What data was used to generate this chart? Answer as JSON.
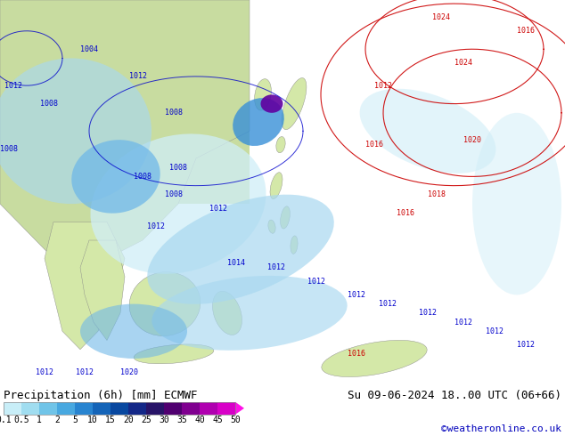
{
  "title_left": "Precipitation (6h) [mm] ECMWF",
  "title_right": "Su 09-06-2024 18..00 UTC (06+66)",
  "credit": "©weatheronline.co.uk",
  "colorbar_labels": [
    "0.1",
    "0.5",
    "1",
    "2",
    "5",
    "10",
    "15",
    "20",
    "25",
    "30",
    "35",
    "40",
    "45",
    "50"
  ],
  "colorbar_colors": [
    "#c8eef8",
    "#a0ddf0",
    "#70c4e8",
    "#48a8e0",
    "#2884d0",
    "#1464b8",
    "#0848a0",
    "#142888",
    "#281468",
    "#500070",
    "#800090",
    "#b000b0",
    "#d800c8",
    "#f000d0",
    "#ff10e8"
  ],
  "bg_color": "#ffffff",
  "map_colors": {
    "land_green": "#c8dca0",
    "land_green2": "#d4e8a8",
    "sea_light": "#e8f4f8",
    "precip_vlight": "#d0eef8",
    "precip_light": "#a8d8f0",
    "precip_mid": "#70b8e8",
    "precip_blue": "#3890d8",
    "precip_darkblue": "#1060b0",
    "precip_navy": "#082890",
    "precip_purple": "#6000a0",
    "precip_magenta": "#c000c0"
  },
  "credit_color": "#0000bb",
  "title_fontsize": 9,
  "cb_fontsize": 7,
  "fig_width": 6.34,
  "fig_height": 4.9,
  "dpi": 100
}
